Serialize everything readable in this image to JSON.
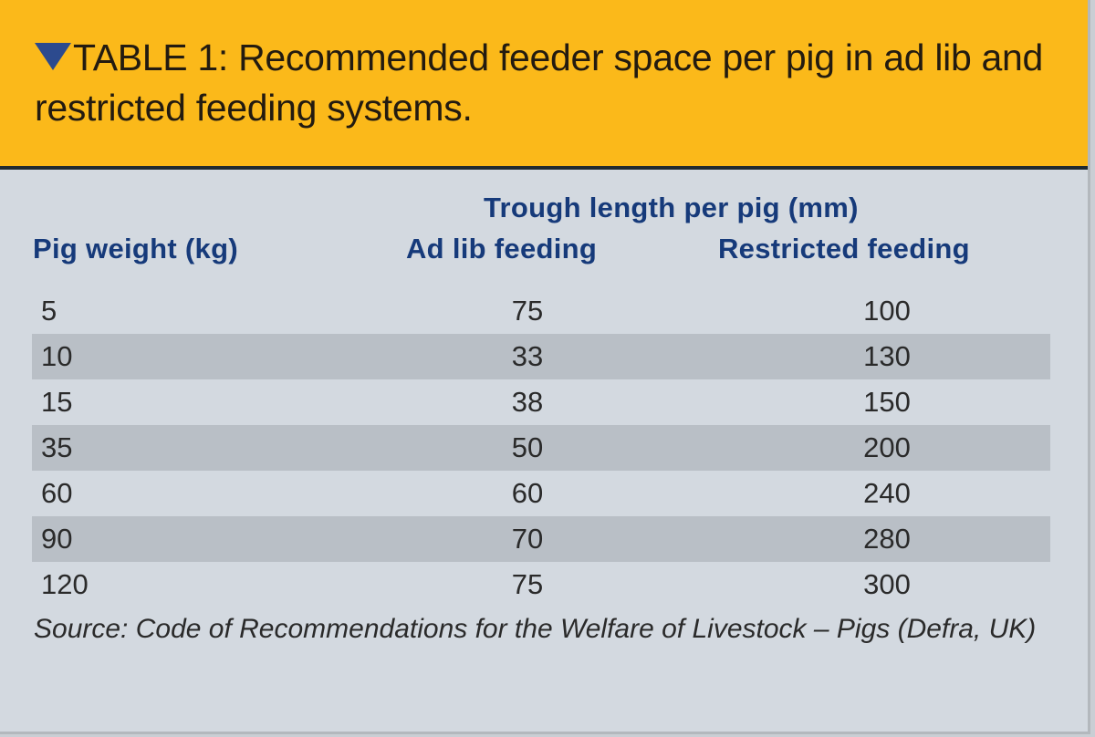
{
  "title": "TABLE 1: Recommended feeder space per pig in ad lib and restricted feeding systems.",
  "title_icon": "triangle-down-icon",
  "colors": {
    "header_bg": "#fbb91a",
    "body_bg": "#d3d9e0",
    "stripe": "#b9bfc6",
    "heading_text": "#163a7a"
  },
  "table": {
    "group_header": "Trough length per pig (mm)",
    "columns": [
      "Pig weight (kg)",
      "Ad lib feeding",
      "Restricted feeding"
    ],
    "rows": [
      [
        "5",
        "75",
        "100"
      ],
      [
        "10",
        "33",
        "130"
      ],
      [
        "15",
        "38",
        "150"
      ],
      [
        "35",
        "50",
        "200"
      ],
      [
        "60",
        "60",
        "240"
      ],
      [
        "90",
        "70",
        "280"
      ],
      [
        "120",
        "75",
        "300"
      ]
    ]
  },
  "source": "Source: Code of Recommendations for the Welfare of Livestock – Pigs (Defra, UK)"
}
